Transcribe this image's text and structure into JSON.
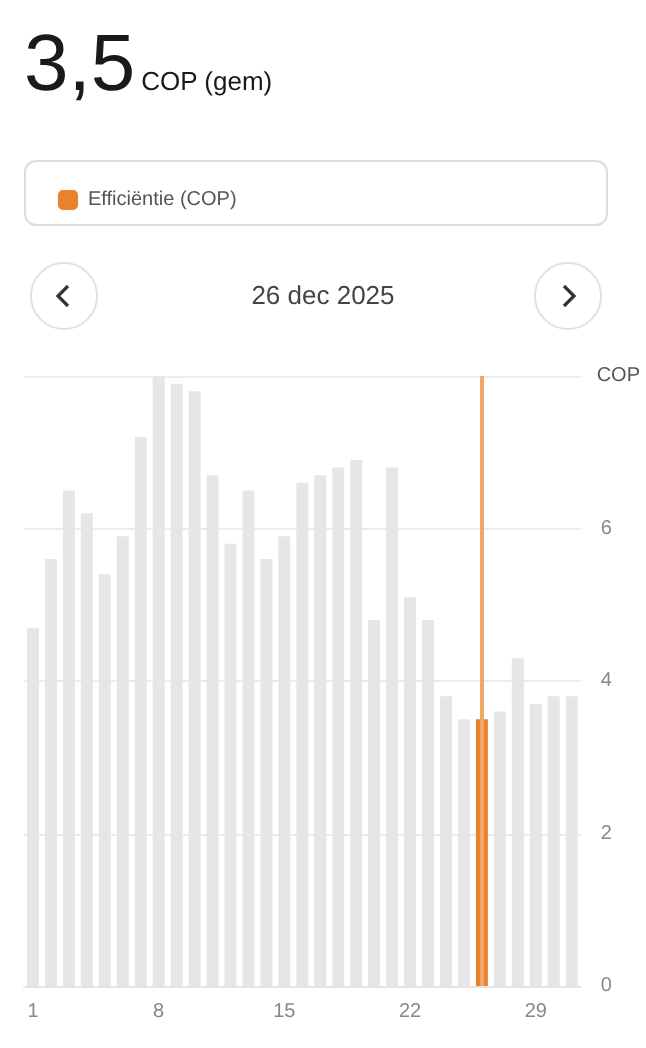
{
  "chart_data": {
    "type": "bar",
    "title": "3,5",
    "subtitle": "COP (gem)",
    "ylabel": "COP",
    "annotations": [
      "26 dec 2025"
    ],
    "x": [
      1,
      2,
      3,
      4,
      5,
      6,
      7,
      8,
      9,
      10,
      11,
      12,
      13,
      14,
      15,
      16,
      17,
      18,
      19,
      20,
      21,
      22,
      23,
      24,
      25,
      26,
      27,
      28,
      29,
      30,
      31
    ],
    "xlim": [
      0.5,
      31.5
    ],
    "xticks": [
      1,
      8,
      15,
      22,
      29
    ],
    "ylim": [
      0,
      8
    ],
    "yticks": [
      0,
      2,
      4,
      6
    ],
    "series": [
      {
        "name": "Efficiëntie (COP)",
        "color": "#e8822d",
        "values": [
          4.7,
          5.6,
          6.5,
          6.2,
          5.4,
          5.9,
          7.2,
          8.0,
          7.9,
          7.8,
          6.7,
          5.8,
          6.5,
          5.6,
          5.9,
          6.6,
          6.7,
          6.8,
          6.9,
          4.8,
          6.8,
          5.1,
          4.8,
          3.8,
          3.5,
          3.5,
          3.6,
          4.3,
          3.7,
          3.8,
          3.8
        ],
        "colors": [
          "#e6e6e8",
          "#e6e6e8",
          "#e6e6e8",
          "#e6e6e8",
          "#e6e6e8",
          "#e6e6e8",
          "#e6e6e8",
          "#e6e6e8",
          "#e6e6e8",
          "#e6e6e8",
          "#e6e6e8",
          "#e6e6e8",
          "#e6e6e8",
          "#e6e6e8",
          "#e6e6e8",
          "#e6e6e8",
          "#e6e6e8",
          "#e6e6e8",
          "#e6e6e8",
          "#e6e6e8",
          "#e6e6e8",
          "#e6e6e8",
          "#e6e6e8",
          "#e6e6e8",
          "#e6e6e8",
          "#e8822d",
          "#e6e6e8",
          "#e6e6e8",
          "#e6e6e8",
          "#e6e6e8",
          "#e6e6e8"
        ]
      }
    ],
    "ref_lines": [
      {
        "axis": "x",
        "value": 26,
        "color": "#f0a868"
      }
    ],
    "grid": "y",
    "legend": "top"
  }
}
